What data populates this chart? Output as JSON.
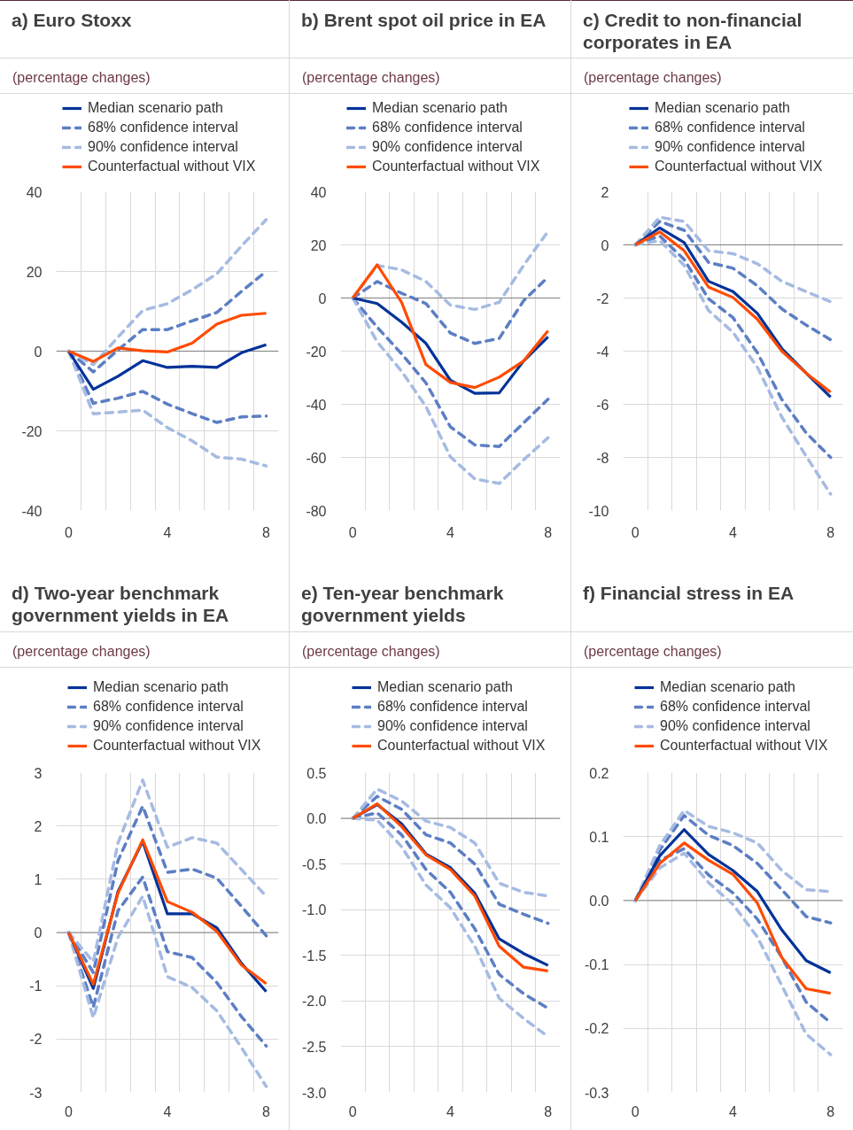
{
  "chart_data": [
    {
      "type": "line",
      "title": "a) Euro Stoxx",
      "subtitle": "(percentage changes)",
      "categories": [
        "0",
        null,
        null,
        null,
        "4",
        null,
        null,
        null,
        "8"
      ],
      "ylim": [
        -40,
        40
      ],
      "yticks": [
        -40,
        -20,
        0,
        20,
        40
      ],
      "grid": true,
      "legend": "top",
      "ref_lines": [
        {
          "axis": "y",
          "value": 0,
          "color": "#808080"
        }
      ],
      "series": [
        {
          "name": "Median scenario path",
          "color": "#003299",
          "line_style": "solid",
          "values": [
            0,
            -9.6,
            -6.3,
            -2.4,
            -4.1,
            -3.8,
            -4.1,
            -0.4,
            1.6
          ]
        },
        {
          "name": "68% confidence interval",
          "color": "#5c7ec4",
          "line_style": "dashed",
          "values": [
            0,
            -5.2,
            0.3,
            5.4,
            5.4,
            7.6,
            9.7,
            15.0,
            20.0
          ]
        },
        {
          "color": "#5c7ec4",
          "line_style": "dashed",
          "values": [
            0,
            -13.1,
            -11.8,
            -10.1,
            -13.3,
            -15.7,
            -17.9,
            -16.5,
            -16.3
          ]
        },
        {
          "name": "90% confidence interval",
          "color": "#a6bbe2",
          "line_style": "dashed",
          "values": [
            0,
            -3.4,
            3.5,
            10.2,
            11.9,
            15.4,
            19.4,
            26.4,
            33.0
          ]
        },
        {
          "color": "#a6bbe2",
          "line_style": "dashed",
          "values": [
            0,
            -15.7,
            -15.3,
            -14.8,
            -19.2,
            -22.5,
            -26.6,
            -27.1,
            -28.8
          ]
        },
        {
          "name": "Counterfactual without VIX",
          "color": "#ff4b00",
          "line_style": "solid",
          "values": [
            0,
            -2.6,
            0.8,
            0.1,
            -0.2,
            2.0,
            6.8,
            9.0,
            9.5
          ]
        }
      ]
    },
    {
      "type": "line",
      "title": "b) Brent spot oil price in EA",
      "subtitle": "(percentage changes)",
      "categories": [
        "0",
        null,
        null,
        null,
        "4",
        null,
        null,
        null,
        "8"
      ],
      "ylim": [
        -80,
        40
      ],
      "yticks": [
        -80,
        -60,
        -40,
        -20,
        0,
        20,
        40
      ],
      "grid": true,
      "legend": "top",
      "ref_lines": [
        {
          "axis": "y",
          "value": 0,
          "color": "#808080"
        }
      ],
      "series": [
        {
          "name": "Median scenario path",
          "color": "#003299",
          "line_style": "solid",
          "values": [
            0,
            -2.1,
            -9.1,
            -17.1,
            -31.0,
            -35.9,
            -35.7,
            -23.7,
            -14.6
          ]
        },
        {
          "name": "68% confidence interval",
          "color": "#5c7ec4",
          "line_style": "dashed",
          "values": [
            0,
            6.2,
            1.8,
            -2.1,
            -13.2,
            -17.1,
            -15.2,
            -1.0,
            7.9
          ]
        },
        {
          "color": "#5c7ec4",
          "line_style": "dashed",
          "values": [
            0,
            -11.0,
            -21.0,
            -32.0,
            -48.5,
            -55.3,
            -55.9,
            -47.0,
            -38.1
          ]
        },
        {
          "name": "90% confidence interval",
          "color": "#a6bbe2",
          "line_style": "dashed",
          "values": [
            0,
            12.3,
            10.6,
            6.2,
            -2.7,
            -4.3,
            -1.6,
            12.3,
            25.1
          ]
        },
        {
          "color": "#a6bbe2",
          "line_style": "dashed",
          "values": [
            0,
            -16.5,
            -27.6,
            -40.9,
            -59.8,
            -68.1,
            -69.8,
            -60.9,
            -52.6
          ]
        },
        {
          "name": "Counterfactual without VIX",
          "color": "#ff4b00",
          "line_style": "solid",
          "values": [
            0,
            12.5,
            -1.6,
            -25.1,
            -31.8,
            -33.7,
            -29.8,
            -23.7,
            -12.3
          ]
        }
      ]
    },
    {
      "type": "line",
      "title": "c) Credit to non-financial corporates in EA",
      "subtitle": "(percentage changes)",
      "categories": [
        "0",
        null,
        null,
        null,
        "4",
        null,
        null,
        null,
        "8"
      ],
      "ylim": [
        -10,
        2
      ],
      "yticks": [
        -10,
        -8,
        -6,
        -4,
        -2,
        0,
        2
      ],
      "grid": true,
      "legend": "top",
      "ref_lines": [
        {
          "axis": "y",
          "value": 0,
          "color": "#808080"
        }
      ],
      "series": [
        {
          "name": "Median scenario path",
          "color": "#003299",
          "line_style": "solid",
          "values": [
            0,
            0.64,
            0.09,
            -1.37,
            -1.76,
            -2.58,
            -3.9,
            -4.83,
            -5.73
          ]
        },
        {
          "name": "68% confidence interval",
          "color": "#5c7ec4",
          "line_style": "dashed",
          "values": [
            0,
            0.88,
            0.55,
            -0.66,
            -0.88,
            -1.54,
            -2.41,
            -3.02,
            -3.57
          ]
        },
        {
          "color": "#5c7ec4",
          "line_style": "dashed",
          "values": [
            0,
            0.33,
            -0.55,
            -2.03,
            -2.74,
            -4.06,
            -5.82,
            -7.08,
            -8.0
          ]
        },
        {
          "name": "90% confidence interval",
          "color": "#a6bbe2",
          "line_style": "dashed",
          "values": [
            0,
            1.04,
            0.88,
            -0.22,
            -0.33,
            -0.71,
            -1.37,
            -1.76,
            -2.14
          ]
        },
        {
          "color": "#a6bbe2",
          "line_style": "dashed",
          "values": [
            0,
            0.16,
            -0.77,
            -2.47,
            -3.29,
            -4.61,
            -6.48,
            -7.96,
            -9.38
          ]
        },
        {
          "name": "Counterfactual without VIX",
          "color": "#ff4b00",
          "line_style": "solid",
          "values": [
            0,
            0.49,
            -0.22,
            -1.59,
            -1.98,
            -2.8,
            -4.0,
            -4.83,
            -5.54
          ]
        }
      ]
    },
    {
      "type": "line",
      "title": "d) Two-year benchmark government yields in EA",
      "subtitle": "(percentage changes)",
      "categories": [
        "0",
        null,
        null,
        null,
        "4",
        null,
        null,
        null,
        "8"
      ],
      "ylim": [
        -3,
        3
      ],
      "yticks": [
        -3,
        -2,
        -1,
        0,
        1,
        2,
        3
      ],
      "grid": true,
      "legend": "top",
      "ref_lines": [
        {
          "axis": "y",
          "value": 0,
          "color": "#808080"
        }
      ],
      "series": [
        {
          "name": "Median scenario path",
          "color": "#003299",
          "line_style": "solid",
          "values": [
            0,
            -1.05,
            0.77,
            1.71,
            0.35,
            0.35,
            0.09,
            -0.58,
            -1.11
          ]
        },
        {
          "name": "68% confidence interval",
          "color": "#5c7ec4",
          "line_style": "dashed",
          "values": [
            0,
            -0.75,
            1.35,
            2.37,
            1.13,
            1.19,
            1.02,
            0.49,
            -0.06
          ]
        },
        {
          "color": "#5c7ec4",
          "line_style": "dashed",
          "values": [
            0,
            -1.4,
            0.41,
            1.04,
            -0.36,
            -0.47,
            -0.94,
            -1.58,
            -2.13
          ]
        },
        {
          "name": "90% confidence interval",
          "color": "#a6bbe2",
          "line_style": "dashed",
          "values": [
            0,
            -0.55,
            1.68,
            2.86,
            1.6,
            1.78,
            1.68,
            1.18,
            0.68
          ]
        },
        {
          "color": "#a6bbe2",
          "line_style": "dashed",
          "values": [
            0,
            -1.6,
            -0.09,
            0.68,
            -0.83,
            -1.03,
            -1.47,
            -2.16,
            -2.89
          ]
        },
        {
          "name": "Counterfactual without VIX",
          "color": "#ff4b00",
          "line_style": "solid",
          "values": [
            0,
            -0.97,
            0.74,
            1.74,
            0.58,
            0.38,
            0.02,
            -0.61,
            -0.96
          ]
        }
      ]
    },
    {
      "type": "line",
      "title": "e) Ten-year benchmark government yields",
      "subtitle": "(percentage changes)",
      "categories": [
        "0",
        null,
        null,
        null,
        "4",
        null,
        null,
        null,
        "8"
      ],
      "ylim": [
        -3,
        0.5
      ],
      "yticks": [
        {
          "value": -3,
          "label": "-3.0"
        },
        -2.5,
        {
          "value": -2,
          "label": "-2.0"
        },
        -1.5,
        {
          "value": -1,
          "label": "-1.0"
        },
        -0.5,
        {
          "value": 0,
          "label": "0.0"
        },
        0.5
      ],
      "grid": true,
      "legend": "top",
      "ref_lines": [
        {
          "axis": "y",
          "value": 0,
          "color": "#808080"
        }
      ],
      "series": [
        {
          "name": "Median scenario path",
          "color": "#003299",
          "line_style": "solid",
          "values": [
            0,
            0.15,
            -0.06,
            -0.39,
            -0.54,
            -0.82,
            -1.32,
            -1.48,
            -1.61
          ]
        },
        {
          "name": "68% confidence interval",
          "color": "#5c7ec4",
          "line_style": "dashed",
          "values": [
            0,
            0.24,
            0.1,
            -0.18,
            -0.27,
            -0.5,
            -0.94,
            -1.05,
            -1.15
          ]
        },
        {
          "color": "#5c7ec4",
          "line_style": "dashed",
          "values": [
            0,
            0.06,
            -0.18,
            -0.56,
            -0.81,
            -1.21,
            -1.71,
            -1.92,
            -2.08
          ]
        },
        {
          "name": "90% confidence interval",
          "color": "#a6bbe2",
          "line_style": "dashed",
          "values": [
            0,
            0.32,
            0.19,
            -0.03,
            -0.1,
            -0.27,
            -0.71,
            -0.81,
            -0.85
          ]
        },
        {
          "color": "#a6bbe2",
          "line_style": "dashed",
          "values": [
            0,
            -0.02,
            -0.31,
            -0.73,
            -0.98,
            -1.4,
            -1.97,
            -2.19,
            -2.39
          ]
        },
        {
          "name": "Counterfactual without VIX",
          "color": "#ff4b00",
          "line_style": "solid",
          "values": [
            0,
            0.16,
            -0.09,
            -0.4,
            -0.56,
            -0.85,
            -1.4,
            -1.63,
            -1.67
          ]
        }
      ]
    },
    {
      "type": "line",
      "title": "f) Financial stress in EA",
      "subtitle": "(percentage changes)",
      "categories": [
        "0",
        null,
        null,
        null,
        "4",
        null,
        null,
        null,
        "8"
      ],
      "ylim": [
        -0.3,
        0.2
      ],
      "yticks": [
        -0.3,
        -0.2,
        -0.1,
        {
          "value": 0,
          "label": "0.0"
        },
        0.1,
        0.2
      ],
      "grid": true,
      "legend": "top",
      "ref_lines": [
        {
          "axis": "y",
          "value": 0,
          "color": "#808080"
        }
      ],
      "series": [
        {
          "name": "Median scenario path",
          "color": "#003299",
          "line_style": "solid",
          "values": [
            0,
            0.07,
            0.111,
            0.072,
            0.047,
            0.014,
            -0.046,
            -0.094,
            -0.113
          ]
        },
        {
          "name": "68% confidence interval",
          "color": "#5c7ec4",
          "line_style": "dashed",
          "values": [
            0,
            0.079,
            0.133,
            0.102,
            0.086,
            0.058,
            0.017,
            -0.025,
            -0.035
          ]
        },
        {
          "color": "#5c7ec4",
          "line_style": "dashed",
          "values": [
            0,
            0.063,
            0.081,
            0.04,
            0.012,
            -0.029,
            -0.089,
            -0.159,
            -0.191
          ]
        },
        {
          "name": "90% confidence interval",
          "color": "#a6bbe2",
          "line_style": "dashed",
          "values": [
            0,
            0.086,
            0.141,
            0.116,
            0.106,
            0.09,
            0.047,
            0.017,
            0.014
          ]
        },
        {
          "color": "#a6bbe2",
          "line_style": "dashed",
          "values": [
            0,
            0.051,
            0.074,
            0.028,
            -0.006,
            -0.057,
            -0.133,
            -0.209,
            -0.241
          ]
        },
        {
          "name": "Counterfactual without VIX",
          "color": "#ff4b00",
          "line_style": "solid",
          "values": [
            0,
            0.058,
            0.09,
            0.063,
            0.041,
            -0.004,
            -0.089,
            -0.138,
            -0.145
          ]
        }
      ]
    }
  ]
}
